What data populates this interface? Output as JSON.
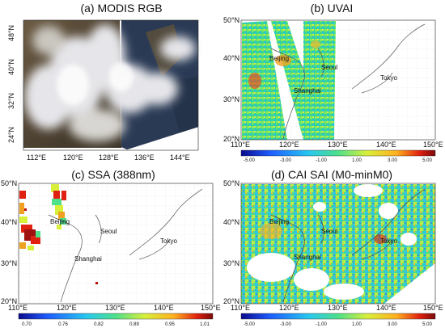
{
  "panels": {
    "a": {
      "title": "(a) MODIS RGB",
      "lat_ticks": [
        "48°N",
        "40°N",
        "32°N",
        "24°N"
      ],
      "lon_ticks": [
        "112°E",
        "120°E",
        "128°E",
        "136°E",
        "144°E"
      ]
    },
    "b": {
      "title": "(b) UVAI",
      "lat_ticks": [
        "50°N",
        "40°N",
        "30°N",
        "20°N"
      ],
      "lon_ticks": [
        "110°E",
        "120°E",
        "130°E",
        "140°E",
        "150°E"
      ],
      "colorbar": [
        "-5.00",
        "-3.00",
        "-1.00",
        "1.00",
        "3.00",
        "5.00"
      ]
    },
    "c": {
      "title": "(c) SSA (388nm)",
      "lat_ticks": [
        "50°N",
        "40°N",
        "30°N",
        "20°N"
      ],
      "lon_ticks": [
        "110°E",
        "120°E",
        "130°E",
        "140°E",
        "150°E"
      ],
      "colorbar": [
        "0.70",
        "0.76",
        "0.82",
        "0.89",
        "0.95",
        "1.01"
      ]
    },
    "d": {
      "title": "(d) CAI SAI (M0-minM0)",
      "lat_ticks": [
        "50°N",
        "40°N",
        "30°N",
        "20°N"
      ],
      "lon_ticks": [
        "110°E",
        "120°E",
        "130°E",
        "140°E",
        "150°E"
      ],
      "colorbar": [
        "-5.00",
        "-3.00",
        "-1.00",
        "1.00",
        "3.00",
        "5.00"
      ]
    }
  },
  "cities": {
    "beijing": "Beijing",
    "seoul": "Seoul",
    "shanghai": "Shanghai",
    "tokyo": "Tokyo"
  },
  "colors": {
    "satellite_land": "#5a4a35",
    "satellite_cloud": "#e4e4e8",
    "ramp": [
      "#0a0a8c",
      "#1e5cff",
      "#28c8f0",
      "#4ee08a",
      "#d8f03a",
      "#ffb020",
      "#e02010",
      "#7a0a0a"
    ]
  }
}
